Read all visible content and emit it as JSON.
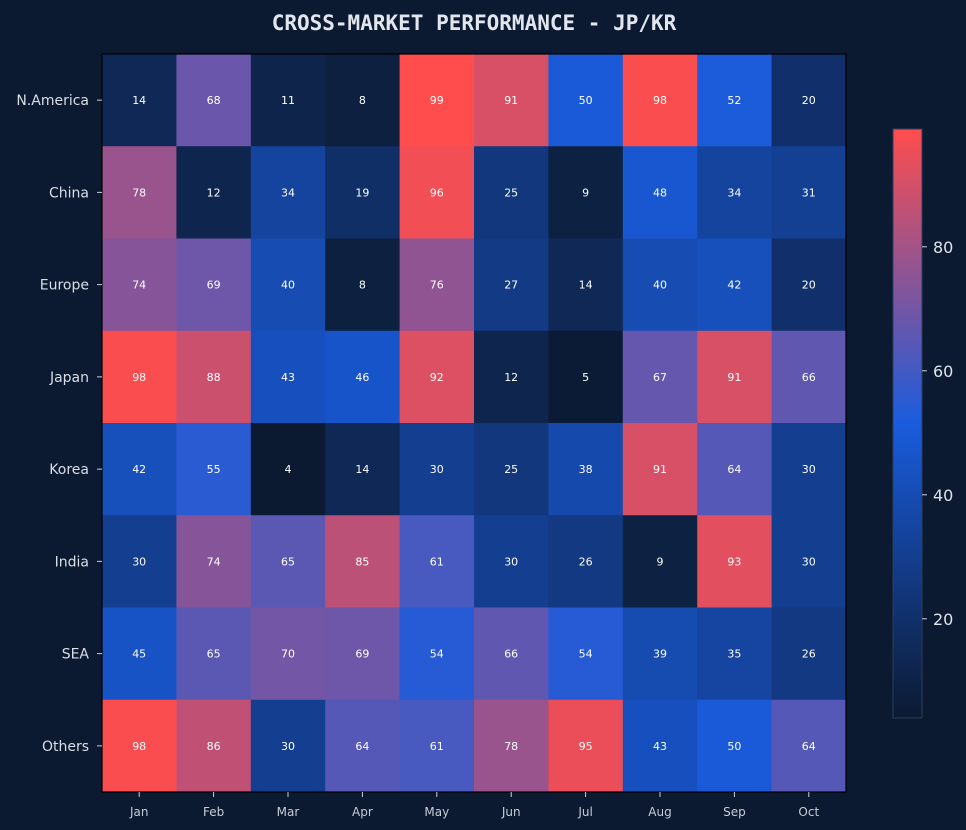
{
  "chart_data": {
    "type": "heatmap",
    "title": "CROSS-MARKET PERFORMANCE - JP/KR",
    "x_categories": [
      "Jan",
      "Feb",
      "Mar",
      "Apr",
      "May",
      "Jun",
      "Jul",
      "Aug",
      "Sep",
      "Oct"
    ],
    "y_categories": [
      "N.America",
      "China",
      "Europe",
      "Japan",
      "Korea",
      "India",
      "SEA",
      "Others"
    ],
    "values": [
      [
        14,
        68,
        11,
        8,
        99,
        91,
        50,
        98,
        52,
        20
      ],
      [
        78,
        12,
        34,
        19,
        96,
        25,
        9,
        48,
        34,
        31
      ],
      [
        74,
        69,
        40,
        8,
        76,
        27,
        14,
        40,
        42,
        20
      ],
      [
        98,
        88,
        43,
        46,
        92,
        12,
        5,
        67,
        91,
        66
      ],
      [
        42,
        55,
        4,
        14,
        30,
        25,
        38,
        91,
        64,
        30
      ],
      [
        30,
        74,
        65,
        85,
        61,
        30,
        26,
        9,
        93,
        30
      ],
      [
        45,
        65,
        70,
        69,
        54,
        66,
        54,
        39,
        35,
        26
      ],
      [
        98,
        86,
        30,
        64,
        61,
        78,
        95,
        43,
        50,
        64
      ]
    ],
    "value_range": [
      4,
      99
    ],
    "colorbar": {
      "ticks": [
        20,
        40,
        60,
        80
      ],
      "colors": [
        "#0c1a31",
        "#1a5cdd",
        "#ff4d4d"
      ]
    },
    "grid": false,
    "legend": "colorbar-right"
  }
}
